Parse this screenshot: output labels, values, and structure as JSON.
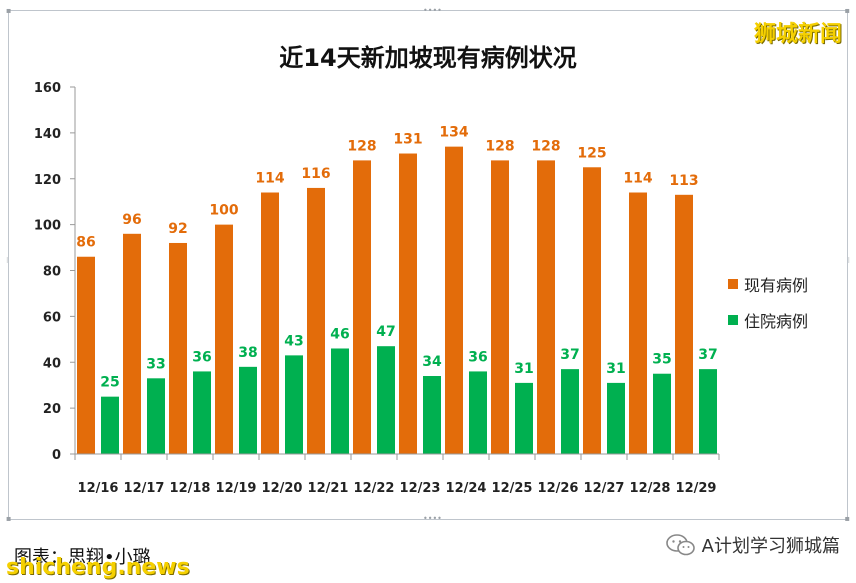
{
  "watermark_top": "狮城新闻",
  "footer": {
    "credit": "图表：思翔•小璐",
    "watermark_site": "shicheng.news",
    "source": "A计划学习狮城篇"
  },
  "icons": {
    "wechat": "wechat-icon"
  },
  "colors": {
    "current_cases": "#E36C0A",
    "hospitalized": "#00B050"
  },
  "chart_data": {
    "type": "bar",
    "title": "近14天新加坡现有病例状况",
    "xlabel": "",
    "ylabel": "",
    "ylim": [
      0,
      160
    ],
    "yticks": [
      0,
      20,
      40,
      60,
      80,
      100,
      120,
      140,
      160
    ],
    "categories": [
      "12/16",
      "12/17",
      "12/18",
      "12/19",
      "12/20",
      "12/21",
      "12/22",
      "12/23",
      "12/24",
      "12/25",
      "12/26",
      "12/27",
      "12/28",
      "12/29"
    ],
    "series": [
      {
        "name": "现有病例",
        "color": "#E36C0A",
        "values": [
          86,
          96,
          92,
          100,
          114,
          116,
          128,
          131,
          134,
          128,
          128,
          125,
          114,
          113
        ]
      },
      {
        "name": "住院病例",
        "color": "#00B050",
        "values": [
          25,
          33,
          36,
          38,
          43,
          46,
          47,
          34,
          36,
          31,
          37,
          31,
          35,
          37
        ]
      }
    ],
    "legend_position": "right",
    "grid": false
  }
}
